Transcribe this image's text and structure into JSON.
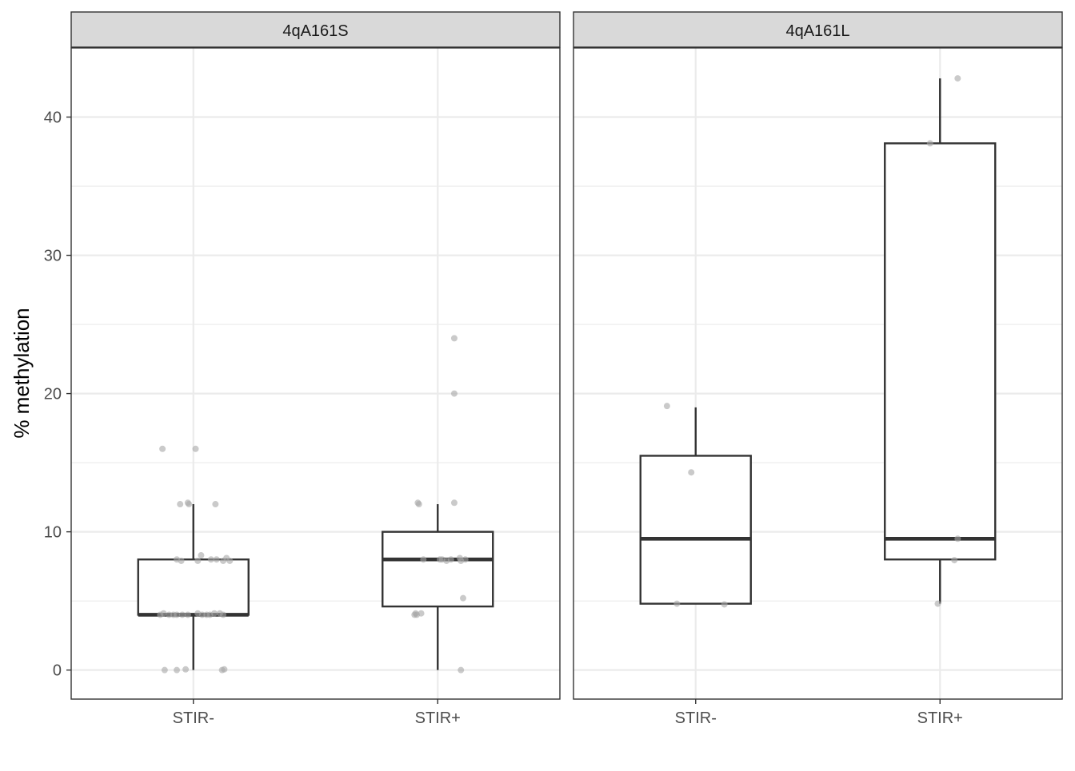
{
  "chart_data": {
    "type": "boxplot",
    "ylabel": "% methylation",
    "xlabel": "",
    "ylim": [
      -2.1,
      45.0
    ],
    "yticks": [
      0,
      10,
      20,
      30,
      40
    ],
    "grid": true,
    "categories": [
      "STIR-",
      "STIR+"
    ],
    "colors": {
      "box": "#333333",
      "point": "#a6a6a6",
      "strip": "#d9d9d9",
      "panel_border": "#333333"
    },
    "panels": [
      {
        "label": "4qA161S",
        "groups": [
          {
            "category": "STIR-",
            "box": {
              "whisker_low": 0,
              "q1": 4,
              "median": 4,
              "q3": 8,
              "whisker_high": 12
            },
            "points": [
              {
                "x": -0.28,
                "y": 16
              },
              {
                "x": 0.02,
                "y": 16
              },
              {
                "x": -0.12,
                "y": 12
              },
              {
                "x": -0.04,
                "y": 12
              },
              {
                "x": -0.05,
                "y": 12.1
              },
              {
                "x": 0.2,
                "y": 12
              },
              {
                "x": -0.15,
                "y": 8
              },
              {
                "x": -0.11,
                "y": 7.9
              },
              {
                "x": 0.04,
                "y": 7.9
              },
              {
                "x": 0.07,
                "y": 8.3
              },
              {
                "x": 0.16,
                "y": 8
              },
              {
                "x": 0.21,
                "y": 8
              },
              {
                "x": 0.27,
                "y": 7.9
              },
              {
                "x": 0.3,
                "y": 8.1
              },
              {
                "x": 0.33,
                "y": 7.9
              },
              {
                "x": -0.3,
                "y": 4
              },
              {
                "x": -0.27,
                "y": 4.1
              },
              {
                "x": -0.22,
                "y": 4
              },
              {
                "x": -0.18,
                "y": 4
              },
              {
                "x": -0.15,
                "y": 4
              },
              {
                "x": -0.1,
                "y": 4
              },
              {
                "x": -0.05,
                "y": 4
              },
              {
                "x": 0.04,
                "y": 4.1
              },
              {
                "x": 0.08,
                "y": 4
              },
              {
                "x": 0.12,
                "y": 4
              },
              {
                "x": 0.15,
                "y": 4
              },
              {
                "x": 0.19,
                "y": 4.1
              },
              {
                "x": 0.24,
                "y": 4.1
              },
              {
                "x": 0.27,
                "y": 4
              },
              {
                "x": -0.26,
                "y": 0
              },
              {
                "x": -0.15,
                "y": 0
              },
              {
                "x": -0.07,
                "y": 0.05
              },
              {
                "x": 0.26,
                "y": 0
              },
              {
                "x": 0.28,
                "y": 0.05
              }
            ]
          },
          {
            "category": "STIR+",
            "box": {
              "whisker_low": 0,
              "q1": 4.6,
              "median": 8,
              "q3": 10,
              "whisker_high": 12
            },
            "points": [
              {
                "x": 0.15,
                "y": 24
              },
              {
                "x": 0.15,
                "y": 20
              },
              {
                "x": -0.17,
                "y": 12
              },
              {
                "x": -0.18,
                "y": 12.1
              },
              {
                "x": 0.15,
                "y": 12.1
              },
              {
                "x": -0.13,
                "y": 8
              },
              {
                "x": 0.02,
                "y": 8
              },
              {
                "x": 0.04,
                "y": 8
              },
              {
                "x": 0.08,
                "y": 7.9
              },
              {
                "x": 0.12,
                "y": 8
              },
              {
                "x": 0.21,
                "y": 7.9
              },
              {
                "x": 0.25,
                "y": 8
              },
              {
                "x": 0.2,
                "y": 8.1
              },
              {
                "x": 0.23,
                "y": 5.2
              },
              {
                "x": -0.21,
                "y": 4
              },
              {
                "x": -0.2,
                "y": 4.1
              },
              {
                "x": -0.19,
                "y": 4
              },
              {
                "x": -0.15,
                "y": 4.1
              },
              {
                "x": 0.21,
                "y": 0
              }
            ]
          }
        ]
      },
      {
        "label": "4qA161L",
        "groups": [
          {
            "category": "STIR-",
            "box": {
              "whisker_low": 4.8,
              "q1": 4.8,
              "median": 9.5,
              "q3": 15.5,
              "whisker_high": 19
            },
            "points": [
              {
                "x": -0.26,
                "y": 19.1
              },
              {
                "x": -0.04,
                "y": 14.3
              },
              {
                "x": -0.17,
                "y": 4.8
              },
              {
                "x": 0.26,
                "y": 4.75
              }
            ]
          },
          {
            "category": "STIR+",
            "box": {
              "whisker_low": 4.8,
              "q1": 8,
              "median": 9.5,
              "q3": 38.1,
              "whisker_high": 42.8
            },
            "points": [
              {
                "x": 0.16,
                "y": 42.8
              },
              {
                "x": -0.09,
                "y": 38.1
              },
              {
                "x": 0.16,
                "y": 9.5
              },
              {
                "x": 0.13,
                "y": 7.95
              },
              {
                "x": -0.02,
                "y": 4.8
              }
            ]
          }
        ]
      }
    ]
  }
}
